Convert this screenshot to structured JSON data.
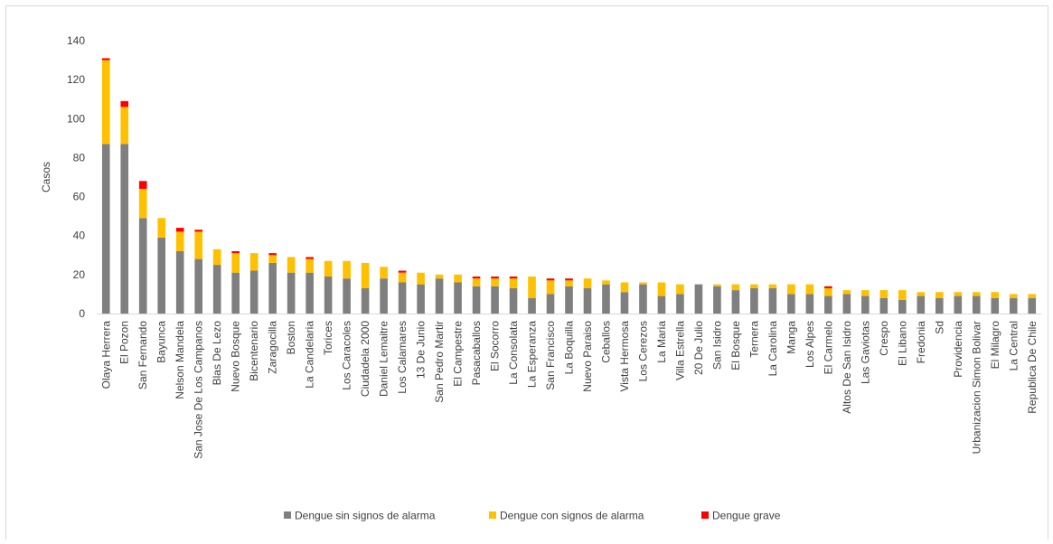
{
  "chart_data": {
    "type": "bar",
    "stacked": true,
    "title": "",
    "xlabel": "",
    "ylabel": "Casos",
    "ylim": [
      0,
      140
    ],
    "yticks": [
      0,
      20,
      40,
      60,
      80,
      100,
      120,
      140
    ],
    "grid": false,
    "legend_position": "bottom",
    "categories": [
      "Olaya Herrera",
      "El Pozon",
      "San Fernando",
      "Bayunca",
      "Nelson Mandela",
      "San Jose De Los Campanos",
      "Blas De Lezo",
      "Nuevo Bosque",
      "Bicentenario",
      "Zaragocilla",
      "Boston",
      "La Candelaria",
      "Torices",
      "Los Caracoles",
      "Ciudadela 2000",
      "Daniel Lemaitre",
      "Los Calamares",
      "13 De Junio",
      "San Pedro Martir",
      "El Campestre",
      "Pasacaballos",
      "El Socorro",
      "La Consolata",
      "La Esperanza",
      "San Francisco",
      "La Boquilla",
      "Nuevo Paraiso",
      "Ceballos",
      "Vista Hermosa",
      "Los Cerezos",
      "La Maria",
      "Villa Estrella",
      "20 De Julio",
      "San Isidro",
      "El Bosque",
      "Ternera",
      "La Carolina",
      "Manga",
      "Los Alpes",
      "El Carmelo",
      "Altos De San Isidro",
      "Las Gaviotas",
      "Crespo",
      "El Libano",
      "Fredonia",
      "Sd",
      "Providencia",
      "Urbanizacion Simon Bolivar",
      "El Milagro",
      "La Central",
      "Republica De Chile"
    ],
    "series": [
      {
        "name": "Dengue sin signos de alarma",
        "color": "#7f7f7f",
        "values": [
          87,
          87,
          49,
          39,
          32,
          28,
          25,
          21,
          22,
          26,
          21,
          21,
          19,
          18,
          13,
          18,
          16,
          15,
          18,
          16,
          14,
          14,
          13,
          8,
          10,
          14,
          13,
          15,
          11,
          15,
          9,
          10,
          15,
          14,
          12,
          13,
          13,
          10,
          10,
          9,
          10,
          9,
          8,
          7,
          9,
          8,
          9,
          9,
          8,
          8,
          8
        ]
      },
      {
        "name": "Dengue con signos de alarma",
        "color": "#ffc000",
        "values": [
          43,
          19,
          15,
          10,
          10,
          14,
          8,
          10,
          9,
          4,
          8,
          7,
          8,
          9,
          13,
          6,
          5,
          6,
          2,
          4,
          4,
          4,
          5,
          11,
          7,
          3,
          5,
          2,
          5,
          1,
          7,
          5,
          0,
          1,
          3,
          2,
          2,
          5,
          5,
          4,
          2,
          3,
          4,
          5,
          2,
          3,
          2,
          2,
          3,
          2,
          2
        ]
      },
      {
        "name": "Dengue grave",
        "color": "#ff0000",
        "values": [
          1,
          3,
          4,
          0,
          2,
          1,
          0,
          1,
          0,
          1,
          0,
          1,
          0,
          0,
          0,
          0,
          1,
          0,
          0,
          0,
          1,
          1,
          1,
          0,
          1,
          1,
          0,
          0,
          0,
          0,
          0,
          0,
          0,
          0,
          0,
          0,
          0,
          0,
          0,
          1,
          0,
          0,
          0,
          0,
          0,
          0,
          0,
          0,
          0,
          0,
          0
        ]
      }
    ]
  }
}
